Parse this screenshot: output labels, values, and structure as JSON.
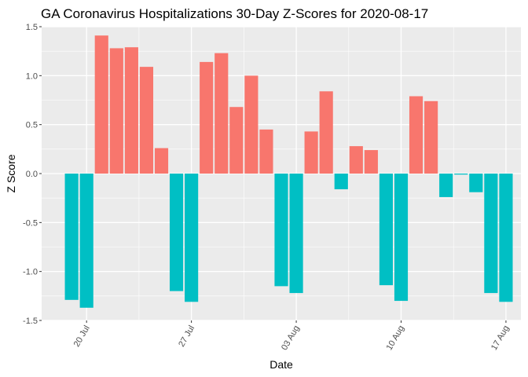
{
  "chart_data": {
    "type": "bar",
    "title": "GA Coronavirus Hospitalizations 30-Day Z-Scores for 2020-08-17",
    "xlabel": "Date",
    "ylabel": "Z Score",
    "ylim": [
      -1.5,
      1.5
    ],
    "yticks": [
      -1.5,
      -1.0,
      -0.5,
      0.0,
      0.5,
      1.0,
      1.5
    ],
    "ytick_labels": [
      "-1.5",
      "-1.0",
      "-0.5",
      "0.0",
      "0.5",
      "1.0",
      "1.5"
    ],
    "xticks": [
      {
        "date": "2020-07-20",
        "label": "20 Jul"
      },
      {
        "date": "2020-07-27",
        "label": "27 Jul"
      },
      {
        "date": "2020-08-03",
        "label": "03 Aug"
      },
      {
        "date": "2020-08-10",
        "label": "10 Aug"
      },
      {
        "date": "2020-08-17",
        "label": "17 Aug"
      }
    ],
    "x_range": [
      "2020-07-17",
      "2020-08-18"
    ],
    "grid": true,
    "legend": "none",
    "colors": {
      "positive": "#F8766D",
      "negative": "#00BFC4",
      "panel": "#EBEBEB",
      "grid": "#FFFFFF"
    },
    "x": [
      "2020-07-19",
      "2020-07-20",
      "2020-07-21",
      "2020-07-22",
      "2020-07-23",
      "2020-07-24",
      "2020-07-25",
      "2020-07-26",
      "2020-07-27",
      "2020-07-28",
      "2020-07-29",
      "2020-07-30",
      "2020-07-31",
      "2020-08-01",
      "2020-08-02",
      "2020-08-03",
      "2020-08-04",
      "2020-08-05",
      "2020-08-06",
      "2020-08-07",
      "2020-08-08",
      "2020-08-09",
      "2020-08-10",
      "2020-08-11",
      "2020-08-12",
      "2020-08-13",
      "2020-08-14",
      "2020-08-15",
      "2020-08-16",
      "2020-08-17"
    ],
    "values": [
      -1.29,
      -1.37,
      1.41,
      1.28,
      1.29,
      1.09,
      0.26,
      -1.2,
      -1.31,
      1.14,
      1.23,
      0.68,
      1.0,
      0.45,
      -1.15,
      -1.22,
      0.43,
      0.84,
      -0.16,
      0.28,
      0.24,
      -1.14,
      -1.3,
      0.79,
      0.74,
      -0.24,
      -0.01,
      -0.19,
      -1.22,
      -1.31
    ]
  }
}
